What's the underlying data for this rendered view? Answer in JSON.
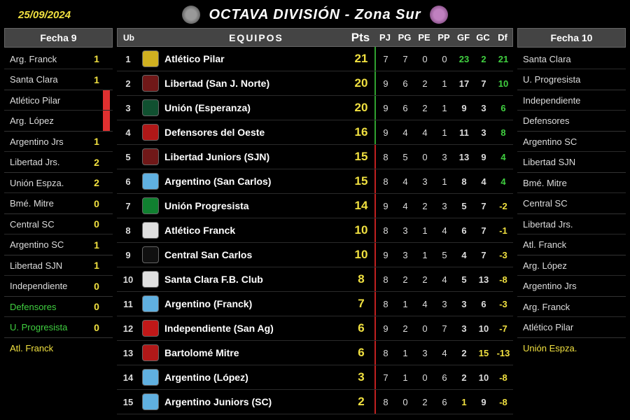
{
  "date": "25/09/2024",
  "title": "OCTAVA DIVISIÓN - Zona Sur",
  "colors": {
    "yellow": "#f0e040",
    "green": "#40d040",
    "white": "#ddd",
    "red": "#e03030",
    "gray": "#999",
    "sep_green": "#30a030",
    "sep_red": "#c02020"
  },
  "left": {
    "header": "Fecha 9",
    "fixtures": [
      {
        "h": "Arg. Franck",
        "hs": "1",
        "a": "Santa Clara",
        "as": "1",
        "hc": "#ddd",
        "ac": "#ddd",
        "sc": "#f0e040",
        "mark": ""
      },
      {
        "h": "Atlético Pilar",
        "hs": "",
        "a": "Arg. López",
        "as": "",
        "hc": "#ddd",
        "ac": "#ddd",
        "sc": "#f0e040",
        "mark": "#e03030"
      },
      {
        "h": "Argentino Jrs",
        "hs": "1",
        "a": "Libertad Jrs.",
        "as": "2",
        "hc": "#ddd",
        "ac": "#ddd",
        "sc": "#f0e040",
        "mark": ""
      },
      {
        "h": "Unión Espza.",
        "hs": "2",
        "a": "Bmé. Mitre",
        "as": "0",
        "hc": "#ddd",
        "ac": "#ddd",
        "sc": "#f0e040",
        "mark": ""
      },
      {
        "h": "Central SC",
        "hs": "0",
        "a": "Argentino SC",
        "as": "1",
        "hc": "#ddd",
        "ac": "#ddd",
        "sc": "#f0e040",
        "mark": ""
      },
      {
        "h": "Libertad SJN",
        "hs": "1",
        "a": "Independiente",
        "as": "0",
        "hc": "#ddd",
        "ac": "#ddd",
        "sc": "#f0e040",
        "mark": ""
      },
      {
        "h": "Defensores",
        "hs": "0",
        "a": "U. Progresista",
        "as": "0",
        "hc": "#40d040",
        "ac": "#40d040",
        "sc": "#f0e040",
        "mark": ""
      }
    ],
    "bye": {
      "team": "Atl. Franck",
      "color": "#f0e040"
    }
  },
  "right": {
    "header": "Fecha 10",
    "fixtures": [
      {
        "h": "Santa Clara",
        "a": "U. Progresista",
        "hc": "#ddd",
        "ac": "#ddd"
      },
      {
        "h": "Independiente",
        "a": "Defensores",
        "hc": "#ddd",
        "ac": "#ddd"
      },
      {
        "h": "Argentino SC",
        "a": "Libertad SJN",
        "hc": "#ddd",
        "ac": "#ddd"
      },
      {
        "h": "Bmé. Mitre",
        "a": "Central SC",
        "hc": "#ddd",
        "ac": "#ddd"
      },
      {
        "h": "Libertad Jrs.",
        "a": "Atl. Franck",
        "hc": "#ddd",
        "ac": "#ddd"
      },
      {
        "h": "Arg. López",
        "a": "Argentino Jrs",
        "hc": "#ddd",
        "ac": "#ddd"
      },
      {
        "h": "Arg. Franck",
        "a": "Atlético Pilar",
        "hc": "#ddd",
        "ac": "#ddd"
      }
    ],
    "bye": {
      "team": "Unión Espza.",
      "color": "#f0e040"
    }
  },
  "table": {
    "headers": {
      "ub": "Ub",
      "team": "EQUIPOS",
      "pts": "Pts",
      "pj": "PJ",
      "pg": "PG",
      "pe": "PE",
      "pp": "PP",
      "gf": "GF",
      "gc": "GC",
      "df": "Df"
    },
    "rows": [
      {
        "ub": 1,
        "badge": "#d0b020",
        "team": "Atlético Pilar",
        "pts": 21,
        "pj": 7,
        "pg": 7,
        "pe": 0,
        "pp": 0,
        "gf": 23,
        "gc": 2,
        "df": 21,
        "gfc": "#40d040",
        "gcc": "#40d040",
        "dfc": "#40d040",
        "sep": "#30a030"
      },
      {
        "ub": 2,
        "badge": "#701818",
        "team": "Libertad (San J. Norte)",
        "pts": 20,
        "pj": 9,
        "pg": 6,
        "pe": 2,
        "pp": 1,
        "gf": 17,
        "gc": 7,
        "df": 10,
        "gfc": "#ddd",
        "gcc": "#ddd",
        "dfc": "#40d040",
        "sep": "#30a030"
      },
      {
        "ub": 3,
        "badge": "#105030",
        "team": "Unión (Esperanza)",
        "pts": 20,
        "pj": 9,
        "pg": 6,
        "pe": 2,
        "pp": 1,
        "gf": 9,
        "gc": 3,
        "df": 6,
        "gfc": "#ddd",
        "gcc": "#ddd",
        "dfc": "#40d040",
        "sep": "#30a030"
      },
      {
        "ub": 4,
        "badge": "#b01818",
        "team": "Defensores del Oeste",
        "pts": 16,
        "pj": 9,
        "pg": 4,
        "pe": 4,
        "pp": 1,
        "gf": 11,
        "gc": 3,
        "df": 8,
        "gfc": "#ddd",
        "gcc": "#ddd",
        "dfc": "#40d040",
        "sep": "#30a030"
      },
      {
        "ub": 5,
        "badge": "#701818",
        "team": "Libertad Juniors (SJN)",
        "pts": 15,
        "pj": 8,
        "pg": 5,
        "pe": 0,
        "pp": 3,
        "gf": 13,
        "gc": 9,
        "df": 4,
        "gfc": "#ddd",
        "gcc": "#ddd",
        "dfc": "#40d040",
        "sep": "#c02020"
      },
      {
        "ub": 6,
        "badge": "#60b0e0",
        "team": "Argentino (San Carlos)",
        "pts": 15,
        "pj": 8,
        "pg": 4,
        "pe": 3,
        "pp": 1,
        "gf": 8,
        "gc": 4,
        "df": 4,
        "gfc": "#ddd",
        "gcc": "#ddd",
        "dfc": "#40d040",
        "sep": "#c02020"
      },
      {
        "ub": 7,
        "badge": "#108030",
        "team": "Unión Progresista",
        "pts": 14,
        "pj": 9,
        "pg": 4,
        "pe": 2,
        "pp": 3,
        "gf": 5,
        "gc": 7,
        "df": -2,
        "gfc": "#ddd",
        "gcc": "#ddd",
        "dfc": "#f0e040",
        "sep": "#c02020"
      },
      {
        "ub": 8,
        "badge": "#e0e0e0",
        "team": "Atlético Franck",
        "pts": 10,
        "pj": 8,
        "pg": 3,
        "pe": 1,
        "pp": 4,
        "gf": 6,
        "gc": 7,
        "df": -1,
        "gfc": "#ddd",
        "gcc": "#ddd",
        "dfc": "#f0e040",
        "sep": "#c02020"
      },
      {
        "ub": 9,
        "badge": "#101010",
        "team": "Central San Carlos",
        "pts": 10,
        "pj": 9,
        "pg": 3,
        "pe": 1,
        "pp": 5,
        "gf": 4,
        "gc": 7,
        "df": -3,
        "gfc": "#ddd",
        "gcc": "#ddd",
        "dfc": "#f0e040",
        "sep": "#c02020"
      },
      {
        "ub": 10,
        "badge": "#e0e0e0",
        "team": "Santa Clara F.B. Club",
        "pts": 8,
        "pj": 8,
        "pg": 2,
        "pe": 2,
        "pp": 4,
        "gf": 5,
        "gc": 13,
        "df": -8,
        "gfc": "#ddd",
        "gcc": "#ddd",
        "dfc": "#f0e040",
        "sep": "#c02020"
      },
      {
        "ub": 11,
        "badge": "#60b0e0",
        "team": "Argentino (Franck)",
        "pts": 7,
        "pj": 8,
        "pg": 1,
        "pe": 4,
        "pp": 3,
        "gf": 3,
        "gc": 6,
        "df": -3,
        "gfc": "#ddd",
        "gcc": "#ddd",
        "dfc": "#f0e040",
        "sep": "#c02020"
      },
      {
        "ub": 12,
        "badge": "#c01818",
        "team": "Independiente (San Ag)",
        "pts": 6,
        "pj": 9,
        "pg": 2,
        "pe": 0,
        "pp": 7,
        "gf": 3,
        "gc": 10,
        "df": -7,
        "gfc": "#ddd",
        "gcc": "#ddd",
        "dfc": "#f0e040",
        "sep": "#c02020"
      },
      {
        "ub": 13,
        "badge": "#b01818",
        "team": "Bartolomé Mitre",
        "pts": 6,
        "pj": 8,
        "pg": 1,
        "pe": 3,
        "pp": 4,
        "gf": 2,
        "gc": 15,
        "df": -13,
        "gfc": "#ddd",
        "gcc": "#f0e040",
        "dfc": "#f0e040",
        "sep": "#c02020"
      },
      {
        "ub": 14,
        "badge": "#60b0e0",
        "team": "Argentino (López)",
        "pts": 3,
        "pj": 7,
        "pg": 1,
        "pe": 0,
        "pp": 6,
        "gf": 2,
        "gc": 10,
        "df": -8,
        "gfc": "#ddd",
        "gcc": "#ddd",
        "dfc": "#f0e040",
        "sep": "#c02020"
      },
      {
        "ub": 15,
        "badge": "#60b0e0",
        "team": "Argentino Juniors (SC)",
        "pts": 2,
        "pj": 8,
        "pg": 0,
        "pe": 2,
        "pp": 6,
        "gf": 1,
        "gc": 9,
        "df": -8,
        "gfc": "#f0e040",
        "gcc": "#ddd",
        "dfc": "#f0e040",
        "sep": "#c02020"
      }
    ]
  }
}
